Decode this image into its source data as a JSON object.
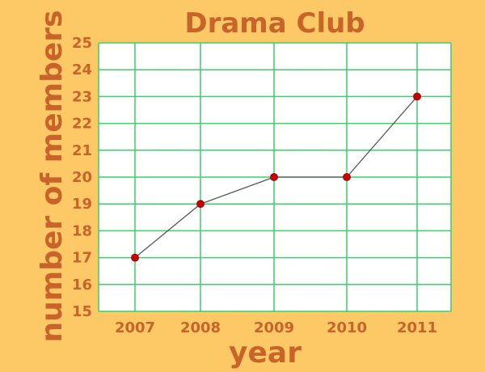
{
  "chart_data": {
    "type": "line",
    "title": "Drama Club",
    "xlabel": "year",
    "ylabel": "number of members",
    "categories": [
      "2007",
      "2008",
      "2009",
      "2010",
      "2011"
    ],
    "values": [
      17,
      19,
      20,
      20,
      23
    ],
    "ylim": [
      15,
      25
    ],
    "y_ticks": [
      "15",
      "16",
      "17",
      "18",
      "19",
      "20",
      "21",
      "22",
      "23",
      "24",
      "25"
    ],
    "grid": true,
    "legend": "none"
  },
  "colors": {
    "background": "#fdc966",
    "plot_area": "#ffffff",
    "grid": "#3ccf6a",
    "text": "#c8642a",
    "line": "#555555",
    "marker": "#cc0000"
  }
}
